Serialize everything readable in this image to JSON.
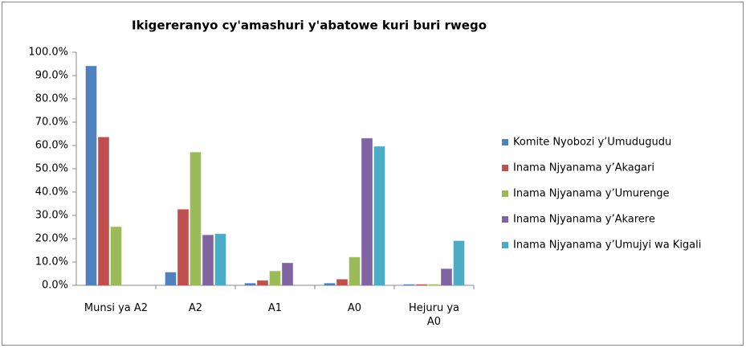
{
  "chart_data": {
    "type": "bar",
    "title": "Ikigereranyo cy'amashuri y'abatowe kuri buri rwego",
    "categories": [
      "Munsi ya A2",
      "A2",
      "A1",
      "A0",
      "Hejuru ya A0"
    ],
    "series": [
      {
        "name": "Komite Nyobozi y’Umudugudu",
        "color": "#4f81bd",
        "values": [
          94,
          5.5,
          0.8,
          0.8,
          0.3
        ]
      },
      {
        "name": "Inama Njyanama y’Akagari",
        "color": "#c0504d",
        "values": [
          63.5,
          32.5,
          2,
          2.5,
          0.3
        ]
      },
      {
        "name": "Inama Njyanama y’Umurenge",
        "color": "#9bbb59",
        "values": [
          25,
          57,
          6,
          12,
          0.3
        ]
      },
      {
        "name": "Inama Njyanama y’Akarere",
        "color": "#8064a2",
        "values": [
          0,
          21.5,
          9.5,
          63,
          7
        ]
      },
      {
        "name": "Inama Njyanama y’Umujyi wa Kigali",
        "color": "#4bacc6",
        "values": [
          0,
          22,
          0,
          59.5,
          19
        ]
      }
    ],
    "ylim": [
      0,
      100
    ],
    "yticks": [
      {
        "value": 0,
        "label": "0.0%"
      },
      {
        "value": 10,
        "label": "10.0%"
      },
      {
        "value": 20,
        "label": "20.0%"
      },
      {
        "value": 30,
        "label": "30.0%"
      },
      {
        "value": 40,
        "label": "40.0%"
      },
      {
        "value": 50,
        "label": "50.0%"
      },
      {
        "value": 60,
        "label": "60.0%"
      },
      {
        "value": 70,
        "label": "70.0%"
      },
      {
        "value": 80,
        "label": "80.0%"
      },
      {
        "value": 90,
        "label": "90.0%"
      },
      {
        "value": 100,
        "label": "100.0%"
      }
    ],
    "grid": false,
    "legend": "right"
  }
}
